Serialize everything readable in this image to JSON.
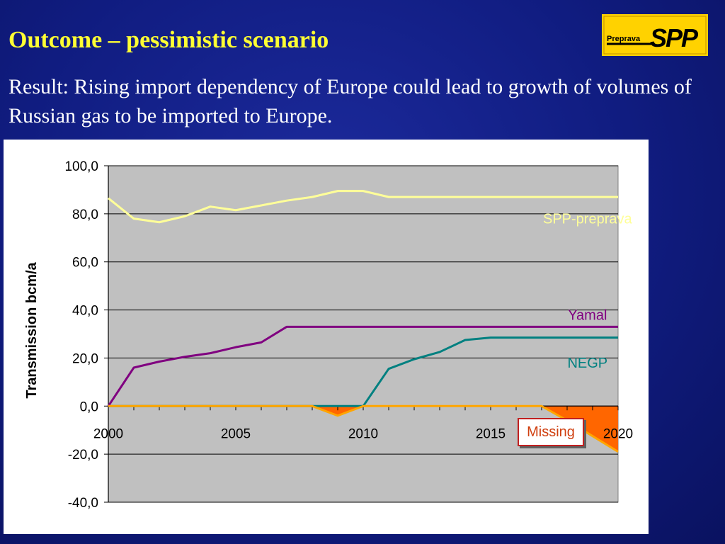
{
  "slide": {
    "title": "Outcome – pessimistic scenario",
    "subtitle": "Result: Rising import dependency of Europe could lead to growth of volumes of  Russian gas to be imported to Europe.",
    "logo_text": "Preprava",
    "logo_mark": "SPP"
  },
  "colors": {
    "background": "#101c80",
    "title": "#ffff33",
    "plot_area": "#c0c0c0",
    "spp_preprava": "#ffff99",
    "yamal": "#800080",
    "negp": "#008080",
    "missing_fill": "#ff6600",
    "missing_line": "#ffa500",
    "logo_bg": "#ffd200"
  },
  "chart_data": {
    "type": "line",
    "title": "",
    "xlabel": "",
    "ylabel": "Transmission bcm/a",
    "xlim": [
      2000,
      2020
    ],
    "ylim": [
      -40,
      100
    ],
    "x_ticks": [
      2000,
      2005,
      2010,
      2015,
      2020
    ],
    "x_tick_labels": [
      "2000",
      "2005",
      "2010",
      "2015",
      "2020"
    ],
    "y_ticks": [
      -40,
      -20,
      0,
      20,
      40,
      60,
      80,
      100
    ],
    "y_tick_labels": [
      "-40,0",
      "-20,0",
      "0,0",
      "20,0",
      "40,0",
      "60,0",
      "80,0",
      "100,0"
    ],
    "grid": "horizontal",
    "x": [
      2000,
      2001,
      2002,
      2003,
      2004,
      2005,
      2006,
      2007,
      2008,
      2009,
      2010,
      2011,
      2012,
      2013,
      2014,
      2015,
      2016,
      2017,
      2018,
      2019,
      2020
    ],
    "series": [
      {
        "name": "SPP-preprava",
        "color": "#ffff99",
        "values": [
          86.5,
          78,
          76.5,
          79,
          83,
          81.5,
          83.5,
          85.5,
          87,
          89.5,
          89.5,
          87,
          87,
          87,
          87,
          87,
          87,
          87,
          87,
          87,
          87
        ]
      },
      {
        "name": "Yamal",
        "color": "#800080",
        "values": [
          0,
          16,
          18.5,
          20.5,
          22,
          24.5,
          26.5,
          33,
          33,
          33,
          33,
          33,
          33,
          33,
          33,
          33,
          33,
          33,
          33,
          33,
          33
        ]
      },
      {
        "name": "NEGP",
        "color": "#008080",
        "values": [
          0,
          0,
          0,
          0,
          0,
          0,
          0,
          0,
          0,
          0,
          0,
          15.5,
          19.5,
          22.5,
          27.5,
          28.5,
          28.5,
          28.5,
          28.5,
          28.5,
          28.5
        ]
      },
      {
        "name": "Missing",
        "color": "#ffa500",
        "values": [
          0,
          0,
          0,
          0,
          0,
          0,
          0,
          0,
          0,
          -4,
          0,
          0,
          0,
          0,
          0,
          0,
          0,
          0,
          -6,
          -12.5,
          -19
        ]
      }
    ],
    "annotations": [
      {
        "text": "SPP-preprava",
        "x": 2018.8,
        "y": 78
      },
      {
        "text": "Yamal",
        "x": 2018.8,
        "y": 38
      },
      {
        "text": "NEGP",
        "x": 2018.8,
        "y": 18
      },
      {
        "text": "Missing",
        "x": 2016.8,
        "y": -12
      }
    ]
  }
}
